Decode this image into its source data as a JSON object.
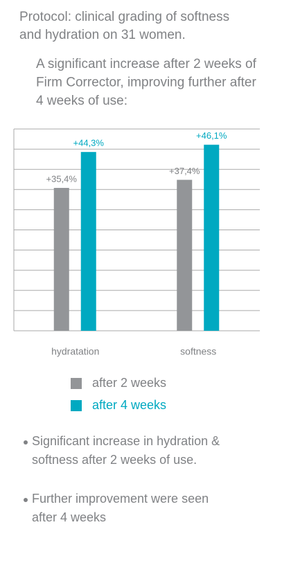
{
  "chart_data": {
    "type": "bar",
    "title": [
      "Protocol: clinical grading of softness",
      "and hydration on 31 women."
    ],
    "subtitle": [
      "A significant increase after 2 weeks of",
      "Firm Corrector, improving further after",
      "4 weeks of use:"
    ],
    "categories": [
      "hydratation",
      "softness"
    ],
    "series": [
      {
        "name": "after 2 weeks",
        "color": "#939598",
        "values": [
          35.4,
          37.4
        ],
        "value_labels": [
          "+35,4%",
          "+37,4%"
        ]
      },
      {
        "name": "after 4 weeks",
        "color": "#00a9c1",
        "values": [
          44.3,
          46.1
        ],
        "value_labels": [
          "+44,3%",
          "+46,1%"
        ]
      }
    ],
    "ylim": [
      0,
      50
    ],
    "yticks": [
      0,
      5,
      10,
      15,
      20,
      25,
      30,
      35,
      40,
      45,
      50
    ],
    "grid": true,
    "notes": [
      [
        "Significant increase in hydration &",
        "softness after 2 weeks of use."
      ],
      [
        "Further improvement were seen",
        "after 4 weeks"
      ]
    ]
  }
}
